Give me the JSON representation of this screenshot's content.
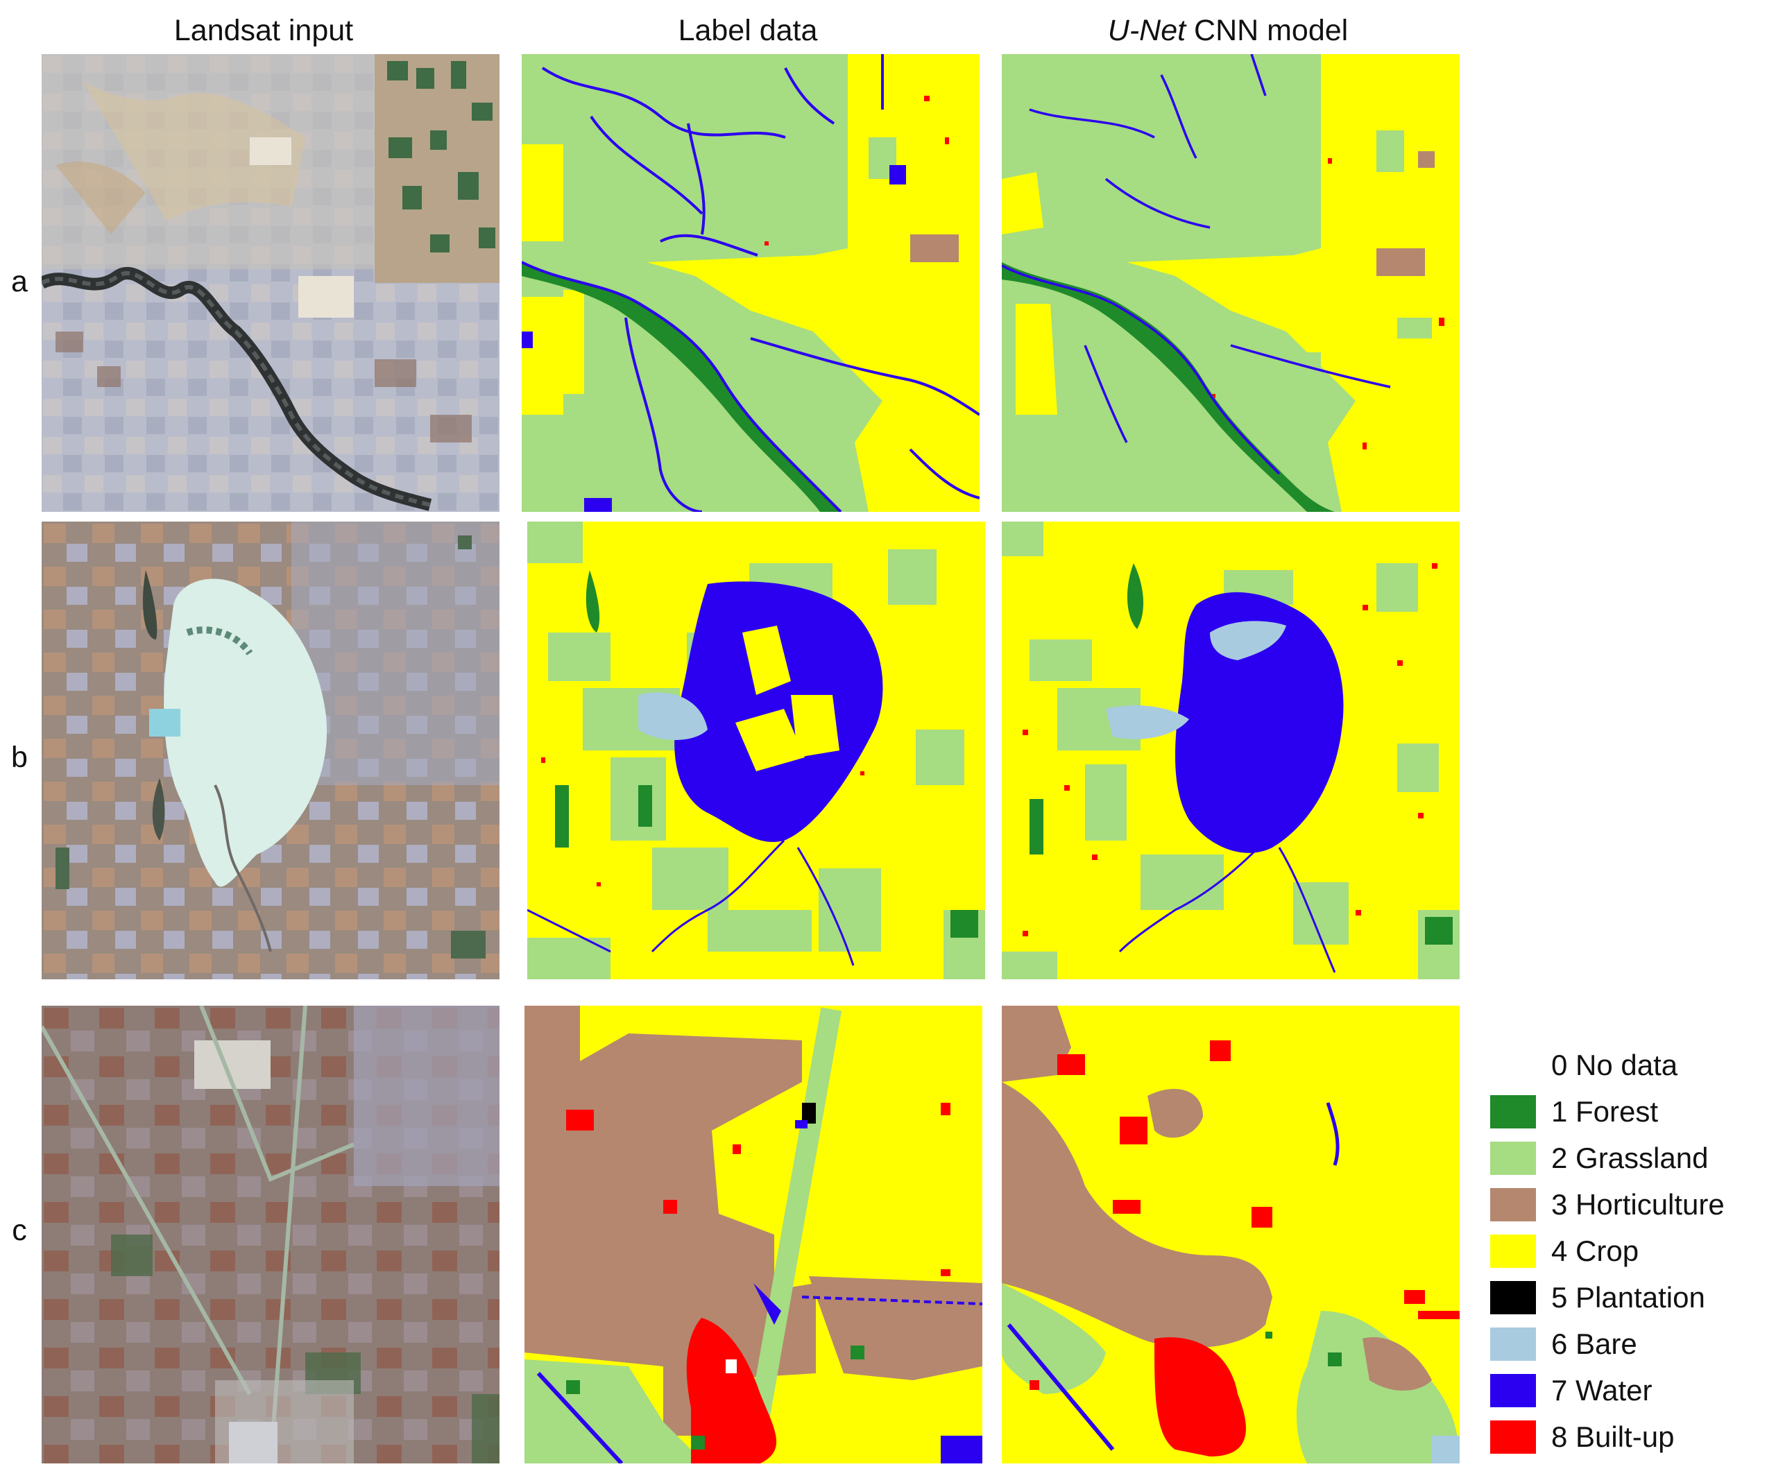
{
  "columns": [
    {
      "title": "Landsat input"
    },
    {
      "title": "Label data"
    },
    {
      "title_italic": "U-Net",
      "title_rest": " CNN model"
    }
  ],
  "rows": [
    "a",
    "b",
    "c"
  ],
  "legend": [
    {
      "label": "0 No data",
      "color": "#ffffff"
    },
    {
      "label": "1 Forest",
      "color": "#1f8a2a"
    },
    {
      "label": "2 Grassland",
      "color": "#a6dc82"
    },
    {
      "label": "3 Horticulture",
      "color": "#b5876f"
    },
    {
      "label": "4 Crop",
      "color": "#ffff00"
    },
    {
      "label": "5 Plantation",
      "color": "#000000"
    },
    {
      "label": "6 Bare",
      "color": "#a9cbe0"
    },
    {
      "label": "7 Water",
      "color": "#2b00f0"
    },
    {
      "label": "8 Built-up",
      "color": "#ff0000"
    }
  ]
}
